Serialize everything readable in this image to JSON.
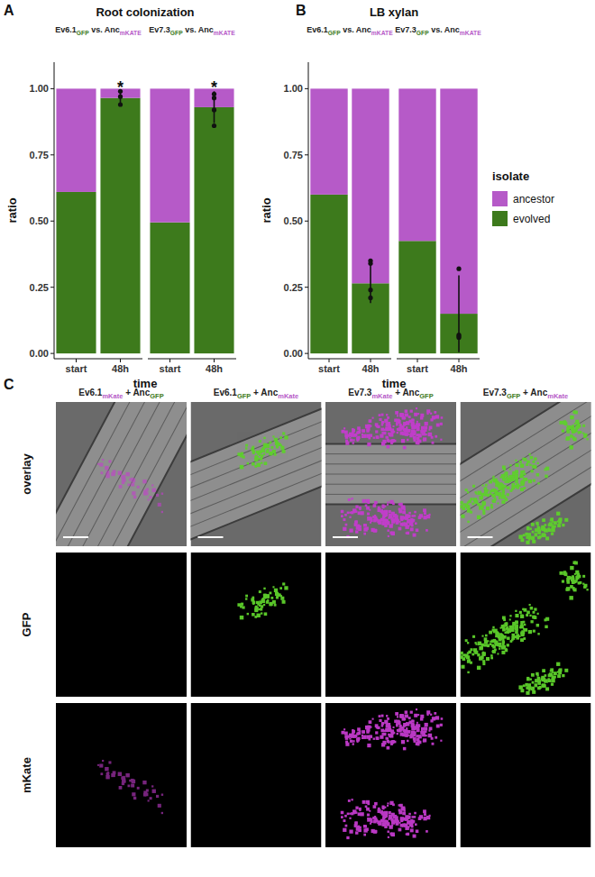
{
  "chart_data": [
    {
      "type": "bar",
      "panel": "A",
      "title": "Root colonization",
      "x_label": "time",
      "y_label": "ratio",
      "stacked": true,
      "facets": [
        {
          "label_parts": [
            "Ev6.1",
            "GFP",
            " vs. Anc",
            "mKATE"
          ]
        },
        {
          "label_parts": [
            "Ev7.3",
            "GFP",
            " vs. Anc",
            "mKATE"
          ]
        }
      ],
      "categories": [
        "start",
        "48h",
        "start",
        "48h"
      ],
      "series": [
        {
          "name": "evolved",
          "color": "#3d7a1c",
          "values": [
            0.61,
            0.965,
            0.495,
            0.93
          ],
          "errors": [
            null,
            0.025,
            null,
            0.06
          ],
          "points": [
            [],
            [
              0.99,
              0.97,
              0.94
            ],
            [],
            [
              0.98,
              0.965,
              0.92,
              0.86
            ]
          ]
        },
        {
          "name": "ancestor",
          "color": "#b65ac8",
          "values": [
            0.39,
            0.035,
            0.505,
            0.07
          ]
        }
      ],
      "annotations": [
        null,
        "*",
        null,
        "*"
      ],
      "ylim": [
        -0.02,
        1.1
      ],
      "yticks": [
        {
          "value": 0,
          "label": "0.00"
        },
        {
          "value": 0.25,
          "label": "0.25"
        },
        {
          "value": 0.5,
          "label": "0.50"
        },
        {
          "value": 0.75,
          "label": "0.75"
        },
        {
          "value": 1,
          "label": "1.00"
        }
      ]
    },
    {
      "type": "bar",
      "panel": "B",
      "title": "LB xylan",
      "x_label": "time",
      "y_label": "ratio",
      "stacked": true,
      "legend": "right",
      "legend_title": "isolate",
      "facets": [
        {
          "label_parts": [
            "Ev6.1",
            "GFP",
            " vs. Anc",
            "mKATE"
          ]
        },
        {
          "label_parts": [
            "Ev7.3",
            "GFP",
            " vs. Anc",
            "mKATE"
          ]
        }
      ],
      "categories": [
        "start",
        "48h",
        "start",
        "48h"
      ],
      "series": [
        {
          "name": "evolved",
          "color": "#3d7a1c",
          "values": [
            0.6,
            0.265,
            0.425,
            0.15
          ],
          "errors": [
            null,
            0.075,
            null,
            0.145
          ],
          "points": [
            [],
            [
              0.35,
              0.34,
              0.24,
              0.21
            ],
            [],
            [
              0.32,
              0.07,
              0.06,
              0.065
            ]
          ]
        },
        {
          "name": "ancestor",
          "color": "#b65ac8",
          "values": [
            0.4,
            0.735,
            0.575,
            0.85
          ]
        }
      ],
      "ylim": [
        -0.02,
        1.1
      ],
      "yticks": [
        {
          "value": 0,
          "label": "0.00"
        },
        {
          "value": 0.25,
          "label": "0.25"
        },
        {
          "value": 0.5,
          "label": "0.50"
        },
        {
          "value": 0.75,
          "label": "0.75"
        },
        {
          "value": 1,
          "label": "1.00"
        }
      ]
    }
  ],
  "panel_c": {
    "panel": "C",
    "columns": [
      {
        "label_parts": [
          "Ev6.1",
          "mKate",
          " + Anc",
          "GFP"
        ]
      },
      {
        "label_parts": [
          "Ev6.1",
          "GFP",
          " + Anc",
          "mKate"
        ]
      },
      {
        "label_parts": [
          "Ev7.3",
          "mKate",
          " + Anc",
          "GFP"
        ]
      },
      {
        "label_parts": [
          "Ev7.3",
          "GFP",
          " + Anc",
          "mKate"
        ]
      }
    ],
    "rows": [
      "overlay",
      "GFP",
      "mKate"
    ]
  }
}
